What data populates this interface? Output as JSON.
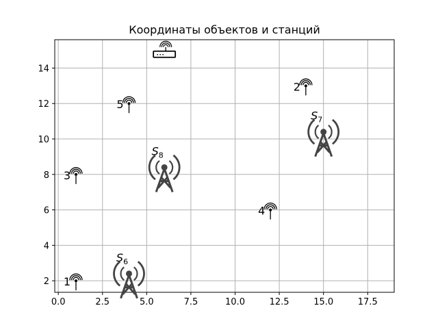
{
  "chart_data": {
    "type": "scatter",
    "title": "Координаты объектов и станций",
    "xlabel": "",
    "ylabel": "",
    "xlim": [
      -0.2,
      19.0
    ],
    "ylim": [
      1.35,
      15.6
    ],
    "grid": true,
    "x_ticks": [
      "0.0",
      "2.5",
      "5.0",
      "7.5",
      "10.0",
      "12.5",
      "15.0",
      "17.5"
    ],
    "x_tick_values": [
      0,
      2.5,
      5,
      7.5,
      10,
      12.5,
      15,
      17.5
    ],
    "y_ticks": [
      "2",
      "4",
      "6",
      "8",
      "10",
      "12",
      "14"
    ],
    "y_tick_values": [
      2,
      4,
      6,
      8,
      10,
      12,
      14
    ],
    "objects": [
      {
        "label": "1",
        "x": 1,
        "y": 2
      },
      {
        "label": "2",
        "x": 14,
        "y": 13
      },
      {
        "label": "3",
        "x": 1,
        "y": 8
      },
      {
        "label": "4",
        "x": 12,
        "y": 6
      },
      {
        "label": "5",
        "x": 4,
        "y": 12
      }
    ],
    "stations": [
      {
        "label": "S",
        "sub": "6",
        "x": 4,
        "y": 2.4
      },
      {
        "label": "S",
        "sub": "7",
        "x": 15,
        "y": 10.4
      },
      {
        "label": "S",
        "sub": "8",
        "x": 6,
        "y": 8.4
      }
    ],
    "router": {
      "x": 6,
      "y": 14.8,
      "icon": "router-icon"
    },
    "colors": {
      "grid": "#b0b0b0",
      "tower": "#444444",
      "object_icon": "#000000"
    }
  }
}
